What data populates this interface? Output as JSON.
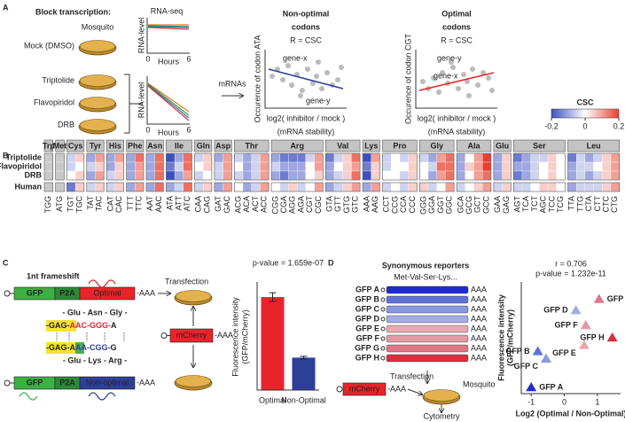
{
  "panel_a": {
    "letter": "A",
    "title": "Block transcription:",
    "mosquito": "Mosquito",
    "rnaseq": "RNA-seq",
    "conditions": [
      "Mock (DMSO)",
      "Triptolide",
      "Flavopiridol",
      "DRB"
    ],
    "rna_level": "RNA-level",
    "hours": "Hours",
    "t0": "0",
    "t6": "6",
    "mrnas": "mRNAs",
    "nonopt": {
      "title": [
        "Non-optimal",
        "codons"
      ],
      "r": "R = CSC",
      "ylabel": "Occurence of codon ATA",
      "gene_x": "gene-x",
      "gene_y": "gene-y"
    },
    "opt": {
      "title": [
        "Optimal",
        "codons"
      ],
      "r": "R = CSC",
      "ylabel": "Occurence of codon CGT",
      "gene_x": "gene-x",
      "gene_y": "gene-y"
    },
    "xlabel": "log2( inhibitor / mock )",
    "xlabel2": "(mRNA stability)"
  },
  "panel_b": {
    "letter": "B",
    "legend_title": "CSC",
    "csc_lim": [
      -0.2,
      0.2
    ],
    "csc_ticks": [
      -0.2,
      0,
      0.2
    ],
    "rows": [
      "Triptolide",
      "Flavopiridol",
      "DRB",
      "Human"
    ],
    "groups": [
      {
        "aa": "Trp",
        "codons": [
          "TGG"
        ],
        "csc": [
          [
            null,
            null,
            null,
            null
          ]
        ]
      },
      {
        "aa": "Met",
        "codons": [
          "ATG"
        ],
        "csc": [
          [
            null,
            null,
            null,
            null
          ]
        ]
      },
      {
        "aa": "Cys",
        "codons": [
          "TGT",
          "TGC"
        ],
        "csc": [
          [
            -0.05,
            -0.05,
            0,
            -0.15
          ],
          [
            0.05,
            0,
            0.05,
            0.05
          ]
        ]
      },
      {
        "aa": "Tyr",
        "codons": [
          "TAT",
          "TAC"
        ],
        "csc": [
          [
            -0.1,
            -0.05,
            -0.1,
            -0.05
          ],
          [
            0.1,
            0.05,
            0.1,
            0.05
          ]
        ]
      },
      {
        "aa": "His",
        "codons": [
          "CAT",
          "CAC"
        ],
        "csc": [
          [
            -0.1,
            -0.1,
            -0.05,
            -0.05
          ],
          [
            0.1,
            0.05,
            0.05,
            0.05
          ]
        ]
      },
      {
        "aa": "Phe",
        "codons": [
          "TTT",
          "TTC"
        ],
        "csc": [
          [
            -0.1,
            -0.1,
            -0.1,
            -0.1
          ],
          [
            0.15,
            0.1,
            0.1,
            0.1
          ]
        ]
      },
      {
        "aa": "Asn",
        "codons": [
          "AAT",
          "AAC"
        ],
        "csc": [
          [
            -0.1,
            -0.1,
            -0.1,
            -0.1
          ],
          [
            0.15,
            0.15,
            0.15,
            0.15
          ]
        ]
      },
      {
        "aa": "Ile",
        "codons": [
          "ATA",
          "ATT",
          "ATC"
        ],
        "csc": [
          [
            -0.2,
            -0.15,
            -0.2,
            -0.1
          ],
          [
            -0.1,
            -0.05,
            -0.1,
            -0.05
          ],
          [
            0.15,
            0.15,
            0.1,
            0.15
          ]
        ]
      },
      {
        "aa": "Gln",
        "codons": [
          "CAA",
          "CAG"
        ],
        "csc": [
          [
            -0.05,
            0,
            -0.05,
            -0.05
          ],
          [
            0.05,
            0.05,
            0,
            0.05
          ]
        ]
      },
      {
        "aa": "Asp",
        "codons": [
          "GAT",
          "GAC"
        ],
        "csc": [
          [
            -0.1,
            -0.05,
            -0.05,
            -0.1
          ],
          [
            0.1,
            0.1,
            0.1,
            0.1
          ]
        ]
      },
      {
        "aa": "Thr",
        "codons": [
          "ACG",
          "ACA",
          "ACT",
          "ACC"
        ],
        "csc": [
          [
            -0.05,
            0,
            -0.05,
            0
          ],
          [
            -0.1,
            -0.1,
            -0.1,
            -0.1
          ],
          [
            -0.05,
            -0.05,
            -0.05,
            -0.05
          ],
          [
            0.1,
            0.1,
            0.1,
            0.1
          ]
        ]
      },
      {
        "aa": "Arg",
        "codons": [
          "CGG",
          "CGA",
          "AGG",
          "AGA",
          "CGT",
          "CGC"
        ],
        "csc": [
          [
            -0.1,
            -0.05,
            -0.1,
            0
          ],
          [
            -0.15,
            -0.1,
            -0.15,
            -0.05
          ],
          [
            -0.15,
            -0.1,
            -0.1,
            0.05
          ],
          [
            -0.15,
            -0.1,
            -0.1,
            -0.05
          ],
          [
            -0.05,
            0,
            0,
            0
          ],
          [
            0.1,
            0.1,
            0.05,
            0.1
          ]
        ]
      },
      {
        "aa": "Val",
        "codons": [
          "GTA",
          "GTT",
          "GTG",
          "GTC"
        ],
        "csc": [
          [
            -0.15,
            -0.1,
            -0.1,
            -0.1
          ],
          [
            -0.05,
            0,
            -0.05,
            -0.05
          ],
          [
            0.05,
            0.05,
            0.05,
            0.05
          ],
          [
            0.15,
            0.1,
            0.15,
            0.1
          ]
        ]
      },
      {
        "aa": "Lys",
        "codons": [
          "AAA",
          "AAG"
        ],
        "csc": [
          [
            -0.2,
            -0.15,
            -0.2,
            -0.1
          ],
          [
            0.1,
            0.05,
            0.05,
            0.1
          ]
        ]
      },
      {
        "aa": "Pro",
        "codons": [
          "CCT",
          "CCG",
          "CCA",
          "CCC"
        ],
        "csc": [
          [
            -0.05,
            -0.05,
            0,
            -0.05
          ],
          [
            0,
            0,
            0,
            0
          ],
          [
            -0.05,
            0,
            -0.05,
            -0.05
          ],
          [
            0.05,
            0.05,
            0.05,
            0.05
          ]
        ]
      },
      {
        "aa": "Gly",
        "codons": [
          "GGG",
          "GGA",
          "GGT",
          "GGC"
        ],
        "csc": [
          [
            -0.05,
            0,
            0,
            0.05
          ],
          [
            -0.1,
            -0.05,
            -0.1,
            -0.05
          ],
          [
            0.1,
            0.15,
            0.1,
            0
          ],
          [
            0.15,
            0.15,
            0.15,
            0.1
          ]
        ]
      },
      {
        "aa": "Ala",
        "codons": [
          "GCA",
          "GCG",
          "GCT",
          "GCC"
        ],
        "csc": [
          [
            -0.1,
            -0.1,
            -0.1,
            -0.05
          ],
          [
            0,
            0.05,
            0,
            0
          ],
          [
            0.1,
            0.1,
            0.1,
            0.05
          ],
          [
            0.2,
            0.2,
            0.15,
            0.1
          ]
        ]
      },
      {
        "aa": "Glu",
        "codons": [
          "GAA",
          "GAG"
        ],
        "csc": [
          [
            -0.1,
            -0.1,
            -0.1,
            -0.05
          ],
          [
            0.05,
            0.05,
            0.05,
            0.05
          ]
        ]
      },
      {
        "aa": "Ser",
        "codons": [
          "AGT",
          "TCA",
          "TCT",
          "AGC",
          "TCC",
          "TCG"
        ],
        "csc": [
          [
            -0.15,
            -0.1,
            -0.15,
            -0.05
          ],
          [
            -0.1,
            -0.1,
            -0.1,
            -0.05
          ],
          [
            -0.05,
            -0.05,
            -0.05,
            0
          ],
          [
            -0.05,
            0,
            0,
            0.05
          ],
          [
            0.05,
            0.05,
            0.05,
            0.05
          ],
          [
            0,
            0,
            0,
            0
          ]
        ]
      },
      {
        "aa": "Leu",
        "codons": [
          "TTA",
          "TTG",
          "CTA",
          "CTT",
          "CTC",
          "CTG"
        ],
        "csc": [
          [
            -0.15,
            -0.1,
            -0.1,
            -0.1
          ],
          [
            -0.05,
            -0.05,
            -0.05,
            -0.05
          ],
          [
            -0.1,
            -0.05,
            -0.1,
            -0.05
          ],
          [
            -0.05,
            0,
            -0.05,
            -0.05
          ],
          [
            0.05,
            0.05,
            0.05,
            0.05
          ],
          [
            0.1,
            0.1,
            0.1,
            0.1
          ]
        ]
      }
    ]
  },
  "panel_c": {
    "letter": "C",
    "title": "1nt frameshift",
    "gfp": "GFP",
    "p2a": "P2A",
    "optimal": "Optimal",
    "non_optimal": "Non-optimal",
    "aaa": "-AAA",
    "transfection": "Transfection",
    "mcherry": "mCherry",
    "aa_top": "- Glu - Asn - Gly -",
    "seq_top": [
      "-GAG-",
      "AAC-GGG-",
      "A"
    ],
    "seq_bottom": [
      "-GAG-",
      "A",
      "AA-CGG-",
      "G"
    ],
    "aa_bottom": "- Glu - Lys - Arg -",
    "chart": {
      "type": "bar",
      "annotation": "p-value = 1.659e-07",
      "ylabel": [
        "Fluorescence intensity",
        "(GFP/mCherry)"
      ],
      "categories": [
        "Optimal",
        "Non-Optimal"
      ],
      "values": [
        4.3,
        1.5
      ],
      "errors": [
        0.2,
        0.06
      ],
      "colors": [
        "#e8232a",
        "#2e3f98"
      ],
      "ylim": [
        0,
        5
      ]
    }
  },
  "panel_d": {
    "letter": "D",
    "title": "Synonymous reporters",
    "subtitle": "Met-Val-Ser-Lys...",
    "aaa": "AAA",
    "mcherry": "mCherry",
    "maaa": "-AAA",
    "transfection": "Transfection",
    "mosquito": "Mosquito",
    "cytometry": "Cytometry",
    "chart": {
      "type": "scatter",
      "annotations": [
        "r = 0.706",
        "p-value = 1.232e-11"
      ],
      "ylabel": [
        "Fluorescence intensity",
        "(GFP/mCherry)"
      ],
      "xlabel": "Log2 (Optimal / Non-Optimal)",
      "xlim": [
        -1.3,
        1.7
      ],
      "ylim": [
        0,
        9
      ],
      "xticks": [
        -1,
        0,
        1
      ],
      "points": [
        {
          "name": "GFP A",
          "x": -1,
          "y": 0.5,
          "color": "#1f2bd1"
        },
        {
          "name": "GFP B",
          "x": -0.8,
          "y": 3.4,
          "color": "#6072d6"
        },
        {
          "name": "GFP C",
          "x": -0.55,
          "y": 2.8,
          "color": "#8a98df"
        },
        {
          "name": "GFP D",
          "x": 0.35,
          "y": 6.7,
          "color": "#a3ace3"
        },
        {
          "name": "GFP E",
          "x": 0.6,
          "y": 3.9,
          "color": "#e7a9b2"
        },
        {
          "name": "GFP F",
          "x": 0.65,
          "y": 5.5,
          "color": "#e49aa5"
        },
        {
          "name": "GFP G",
          "x": 1.05,
          "y": 7.6,
          "color": "#de7785"
        },
        {
          "name": "GFP H",
          "x": 1.45,
          "y": 4.5,
          "color": "#d9303f"
        }
      ]
    }
  }
}
